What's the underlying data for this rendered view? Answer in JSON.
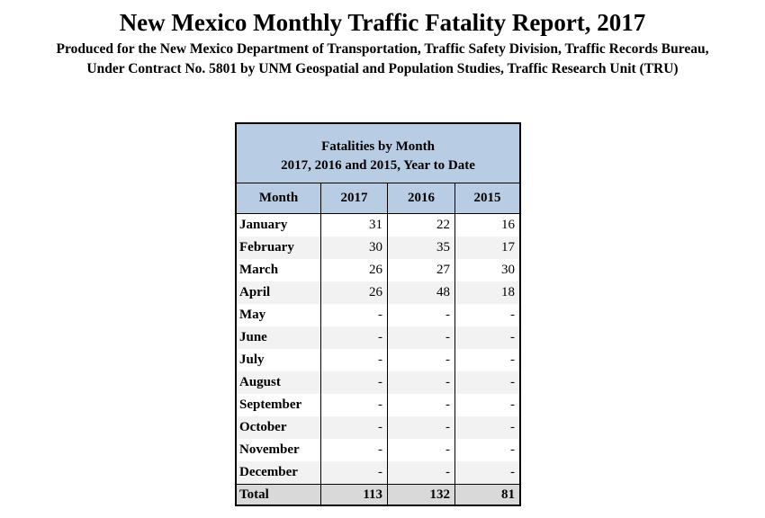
{
  "title": "New Mexico Monthly Traffic Fatality Report, 2017",
  "subtitle_line1": "Produced for the New Mexico Department of Transportation, Traffic Safety Division, Traffic Records Bureau,",
  "subtitle_line2": "Under Contract No. 5801 by UNM Geospatial and Population Studies, Traffic Research Unit (TRU)",
  "table": {
    "heading_line1": "Fatalities by Month",
    "heading_line2": "2017, 2016 and 2015, Year to Date",
    "columns": [
      "Month",
      "2017",
      "2016",
      "2015"
    ],
    "rows": [
      {
        "month": "January",
        "y2017": "31",
        "y2016": "22",
        "y2015": "16"
      },
      {
        "month": "February",
        "y2017": "30",
        "y2016": "35",
        "y2015": "17"
      },
      {
        "month": "March",
        "y2017": "26",
        "y2016": "27",
        "y2015": "30"
      },
      {
        "month": "April",
        "y2017": "26",
        "y2016": "48",
        "y2015": "18"
      },
      {
        "month": "May",
        "y2017": "-",
        "y2016": "-",
        "y2015": "-"
      },
      {
        "month": "June",
        "y2017": "-",
        "y2016": "-",
        "y2015": "-"
      },
      {
        "month": "July",
        "y2017": "-",
        "y2016": "-",
        "y2015": "-"
      },
      {
        "month": "August",
        "y2017": "-",
        "y2016": "-",
        "y2015": "-"
      },
      {
        "month": "September",
        "y2017": "-",
        "y2016": "-",
        "y2015": "-"
      },
      {
        "month": "October",
        "y2017": "-",
        "y2016": "-",
        "y2015": "-"
      },
      {
        "month": "November",
        "y2017": "-",
        "y2016": "-",
        "y2015": "-"
      },
      {
        "month": "December",
        "y2017": "-",
        "y2016": "-",
        "y2015": "-"
      }
    ],
    "total": {
      "label": "Total",
      "y2017": "113",
      "y2016": "132",
      "y2015": "81"
    }
  }
}
